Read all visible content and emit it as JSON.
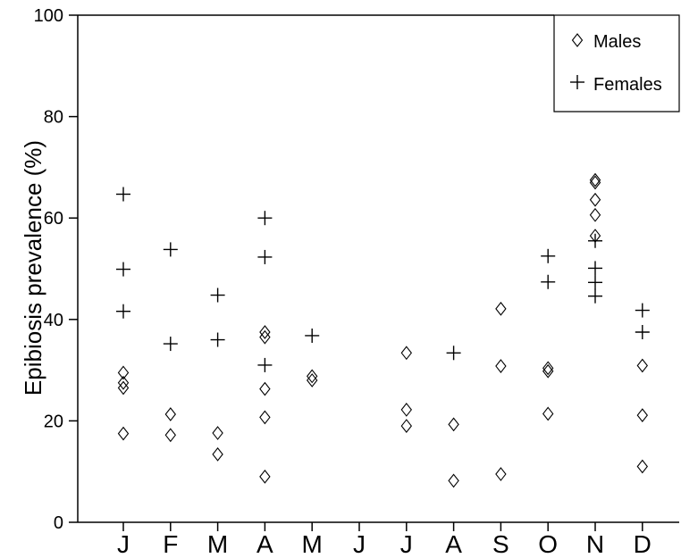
{
  "chart_data": {
    "type": "scatter",
    "title": "",
    "xlabel": "",
    "ylabel": "Epibiosis prevalence (%)",
    "categories": [
      "J",
      "F",
      "M",
      "A",
      "M",
      "J",
      "J",
      "A",
      "S",
      "O",
      "N",
      "D"
    ],
    "ylim": [
      0,
      100
    ],
    "yticks": [
      "0",
      "20",
      "40",
      "60",
      "80",
      "100"
    ],
    "grid": false,
    "legend_position": "top-right",
    "series": [
      {
        "name": "Males",
        "marker": "diamond",
        "points": [
          {
            "cat": 0,
            "y": 29.5
          },
          {
            "cat": 0,
            "y": 27.5
          },
          {
            "cat": 0,
            "y": 26.5
          },
          {
            "cat": 0,
            "y": 17.5
          },
          {
            "cat": 1,
            "y": 21.3
          },
          {
            "cat": 1,
            "y": 17.2
          },
          {
            "cat": 2,
            "y": 17.6
          },
          {
            "cat": 2,
            "y": 13.4
          },
          {
            "cat": 3,
            "y": 37.5
          },
          {
            "cat": 3,
            "y": 36.5
          },
          {
            "cat": 3,
            "y": 26.3
          },
          {
            "cat": 3,
            "y": 20.7
          },
          {
            "cat": 3,
            "y": 9.0
          },
          {
            "cat": 4,
            "y": 28.8
          },
          {
            "cat": 4,
            "y": 28.0
          },
          {
            "cat": 6,
            "y": 33.4
          },
          {
            "cat": 6,
            "y": 22.2
          },
          {
            "cat": 6,
            "y": 19.0
          },
          {
            "cat": 7,
            "y": 19.3
          },
          {
            "cat": 7,
            "y": 8.2
          },
          {
            "cat": 8,
            "y": 42.1
          },
          {
            "cat": 8,
            "y": 30.8
          },
          {
            "cat": 8,
            "y": 9.5
          },
          {
            "cat": 9,
            "y": 30.4
          },
          {
            "cat": 9,
            "y": 29.8
          },
          {
            "cat": 9,
            "y": 21.4
          },
          {
            "cat": 10,
            "y": 67.5
          },
          {
            "cat": 10,
            "y": 67.0
          },
          {
            "cat": 10,
            "y": 63.6
          },
          {
            "cat": 10,
            "y": 60.6
          },
          {
            "cat": 10,
            "y": 56.5
          },
          {
            "cat": 11,
            "y": 30.9
          },
          {
            "cat": 11,
            "y": 21.1
          },
          {
            "cat": 11,
            "y": 11.0
          }
        ]
      },
      {
        "name": "Females",
        "marker": "plus",
        "points": [
          {
            "cat": 0,
            "y": 64.7
          },
          {
            "cat": 0,
            "y": 49.9
          },
          {
            "cat": 0,
            "y": 41.6
          },
          {
            "cat": 1,
            "y": 53.8
          },
          {
            "cat": 1,
            "y": 35.2
          },
          {
            "cat": 2,
            "y": 44.8
          },
          {
            "cat": 2,
            "y": 36.0
          },
          {
            "cat": 3,
            "y": 60.0
          },
          {
            "cat": 3,
            "y": 52.3
          },
          {
            "cat": 3,
            "y": 31.0
          },
          {
            "cat": 4,
            "y": 36.8
          },
          {
            "cat": 7,
            "y": 33.4
          },
          {
            "cat": 9,
            "y": 52.5
          },
          {
            "cat": 9,
            "y": 47.4
          },
          {
            "cat": 10,
            "y": 55.5
          },
          {
            "cat": 10,
            "y": 50.1
          },
          {
            "cat": 10,
            "y": 47.3
          },
          {
            "cat": 10,
            "y": 44.6
          },
          {
            "cat": 11,
            "y": 41.8
          },
          {
            "cat": 11,
            "y": 37.5
          }
        ]
      }
    ]
  }
}
